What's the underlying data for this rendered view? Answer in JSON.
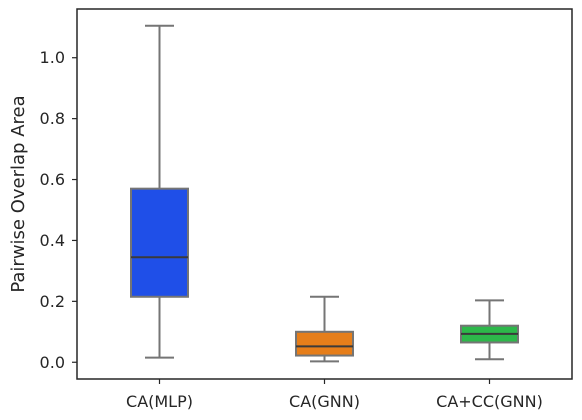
{
  "chart_data": {
    "type": "box",
    "title": "",
    "xlabel": "",
    "ylabel": "Pairwise Overlap Area",
    "ylim": [
      -0.055,
      1.16
    ],
    "yticks": [
      0.0,
      0.2,
      0.4,
      0.6,
      0.8,
      1.0
    ],
    "ytick_labels": [
      "0.0",
      "0.2",
      "0.4",
      "0.6",
      "0.8",
      "1.0"
    ],
    "grid": false,
    "categories": [
      "CA(MLP)",
      "CA(GNN)",
      "CA+CC(GNN)"
    ],
    "series": [
      {
        "name": "CA(MLP)",
        "min": 0.015,
        "q1": 0.215,
        "median": 0.345,
        "q3": 0.57,
        "max": 1.105,
        "color": "#1f4fe8"
      },
      {
        "name": "CA(GNN)",
        "min": 0.003,
        "q1": 0.022,
        "median": 0.052,
        "q3": 0.1,
        "max": 0.215,
        "color": "#e67e1a"
      },
      {
        "name": "CA+CC(GNN)",
        "min": 0.01,
        "q1": 0.065,
        "median": 0.093,
        "q3": 0.12,
        "max": 0.203,
        "color": "#2db84a"
      }
    ]
  }
}
